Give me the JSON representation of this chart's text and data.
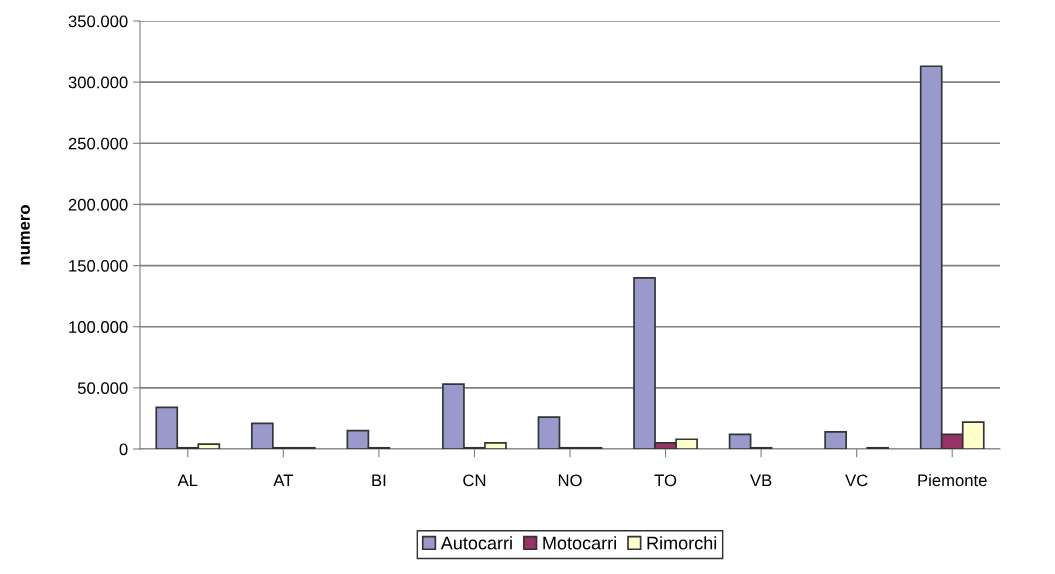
{
  "chart_data": {
    "type": "bar",
    "ylabel": "numero",
    "categories": [
      "AL",
      "AT",
      "BI",
      "CN",
      "NO",
      "TO",
      "VB",
      "VC",
      "Piemonte"
    ],
    "series": [
      {
        "name": "Autocarri",
        "color": "#9999cc",
        "values": [
          34000,
          21000,
          15000,
          53000,
          26000,
          140000,
          12000,
          14000,
          313000
        ]
      },
      {
        "name": "Motocarri",
        "color": "#993366",
        "values": [
          1000,
          1000,
          1000,
          1000,
          1000,
          5000,
          1000,
          null,
          12000
        ]
      },
      {
        "name": "Rimorchi",
        "color": "#ffffcc",
        "values": [
          4000,
          1000,
          null,
          5000,
          1000,
          8000,
          null,
          1000,
          22000
        ]
      }
    ],
    "ylim": [
      0,
      350000
    ],
    "yticks": [
      {
        "value": 0,
        "label": "0"
      },
      {
        "value": 50000,
        "label": "50.000"
      },
      {
        "value": 100000,
        "label": "100.000"
      },
      {
        "value": 150000,
        "label": "150.000"
      },
      {
        "value": 200000,
        "label": "200.000"
      },
      {
        "value": 250000,
        "label": "250.000"
      },
      {
        "value": 300000,
        "label": "300.000"
      },
      {
        "value": 350000,
        "label": "350.000"
      }
    ],
    "grid": "y",
    "legend": "bottom"
  }
}
